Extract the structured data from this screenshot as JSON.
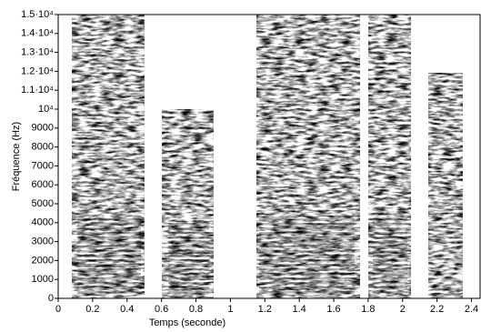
{
  "chart_data": {
    "type": "spectrogram",
    "xlabel": "Temps (seconde)",
    "ylabel": "Fréquence (Hz)",
    "xlim": [
      0,
      2.45
    ],
    "ylim": [
      0,
      15000
    ],
    "xticks": [
      0,
      0.2,
      0.4,
      0.6,
      0.8,
      1,
      1.2,
      1.4,
      1.6,
      1.8,
      2,
      2.2,
      2.4
    ],
    "yticks": [
      0,
      1000,
      2000,
      3000,
      4000,
      5000,
      6000,
      7000,
      8000,
      9000,
      {
        "value": 10000,
        "label": "10⁴"
      },
      {
        "value": 11000,
        "label": "1.1·10⁴"
      },
      {
        "value": 12000,
        "label": "1.2·10⁴"
      },
      {
        "value": 13000,
        "label": "1.3·10⁴"
      },
      {
        "value": 14000,
        "label": "1.4·10⁴"
      },
      {
        "value": 15000,
        "label": "1.5·10⁴"
      }
    ]
  }
}
